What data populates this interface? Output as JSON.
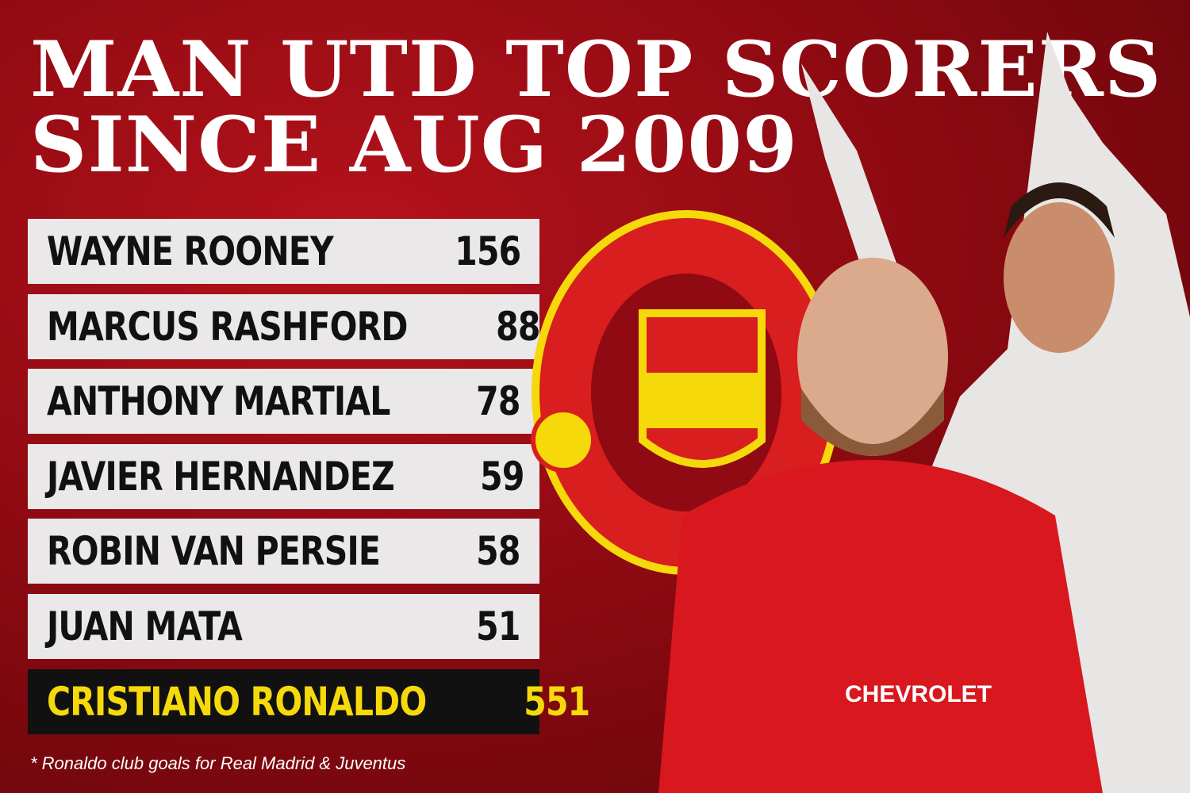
{
  "title": {
    "line1": "MAN UTD TOP SCORERS",
    "line2": "SINCE AUG 2009"
  },
  "rows": [
    {
      "name": "WAYNE ROONEY",
      "goals": "156"
    },
    {
      "name": "MARCUS RASHFORD",
      "goals": "88"
    },
    {
      "name": "ANTHONY MARTIAL",
      "goals": "78"
    },
    {
      "name": "JAVIER HERNANDEZ",
      "goals": "59"
    },
    {
      "name": "ROBIN VAN PERSIE",
      "goals": "58"
    },
    {
      "name": "JUAN MATA",
      "goals": "51"
    },
    {
      "name": "CRISTIANO RONALDO",
      "goals": "551",
      "highlight": true
    }
  ],
  "footnote": "* Ronaldo club goals for Real Madrid & Juventus",
  "colors": {
    "background": "#a50f18",
    "row_bg": "#ebe8e9",
    "highlight_bg": "#111111",
    "highlight_text": "#f5d90a"
  },
  "images": {
    "crest": "manchester-united-crest",
    "player_left": "wayne-rooney-photo",
    "player_right": "cristiano-ronaldo-photo"
  }
}
